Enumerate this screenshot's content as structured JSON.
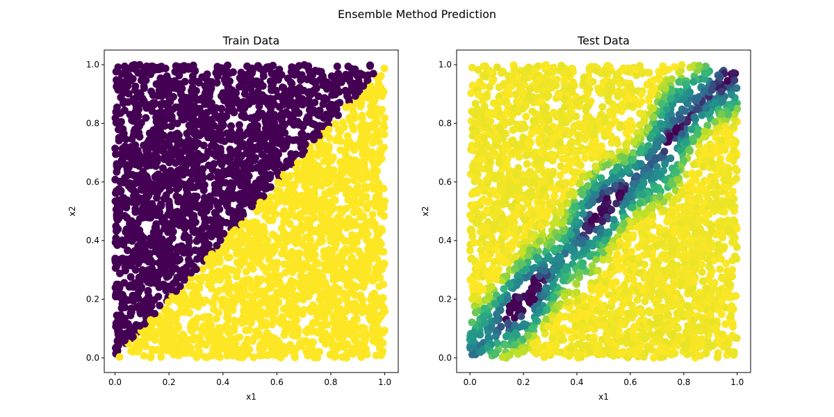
{
  "suptitle": "Ensemble Method Prediction",
  "colormap": [
    "#440154",
    "#31688e",
    "#21918c",
    "#35b779",
    "#b5de2b",
    "#fde725"
  ],
  "chart_data": [
    {
      "type": "scatter",
      "title": "Train Data",
      "xlabel": "x1",
      "ylabel": "x2",
      "xlim": [
        -0.04,
        1.05
      ],
      "ylim": [
        -0.05,
        1.05
      ],
      "xticks": [
        "0.0",
        "0.2",
        "0.4",
        "0.6",
        "0.8",
        "1.0"
      ],
      "yticks": [
        "0.0",
        "0.2",
        "0.4",
        "0.6",
        "0.8",
        "1.0"
      ],
      "grid": false,
      "legend": "none",
      "description_of_data": "Uniform points in [0,1]x[0,1]; class 0 (dark purple #440154) where x2 > x1, class 1 (yellow #fde725) where x2 <= x1",
      "series": [
        {
          "color": "#440154",
          "region": "x2 > x1"
        },
        {
          "color": "#fde725",
          "region": "x2 <= x1"
        }
      ],
      "sample_points": [
        [
          0.02,
          0.05,
          0
        ],
        [
          0.05,
          0.2,
          0
        ],
        [
          0.08,
          0.5,
          0
        ],
        [
          0.03,
          0.92,
          0
        ],
        [
          0.15,
          0.98,
          0
        ],
        [
          0.3,
          0.85,
          0
        ],
        [
          0.4,
          0.95,
          0
        ],
        [
          0.25,
          0.6,
          0
        ],
        [
          0.1,
          0.35,
          0
        ],
        [
          0.5,
          0.75,
          0
        ],
        [
          0.6,
          0.9,
          0
        ],
        [
          0.7,
          0.95,
          0
        ],
        [
          0.85,
          0.97,
          0
        ],
        [
          0.2,
          0.3,
          0
        ],
        [
          0.35,
          0.55,
          0
        ],
        [
          0.55,
          0.6,
          0
        ],
        [
          0.45,
          0.7,
          0
        ],
        [
          0.05,
          0.7,
          0
        ],
        [
          0.05,
          0.02,
          1
        ],
        [
          0.2,
          0.05,
          1
        ],
        [
          0.4,
          0.1,
          1
        ],
        [
          0.6,
          0.02,
          1
        ],
        [
          0.8,
          0.05,
          1
        ],
        [
          0.98,
          0.02,
          1
        ],
        [
          0.95,
          0.4,
          1
        ],
        [
          0.97,
          0.8,
          1
        ],
        [
          0.7,
          0.5,
          1
        ],
        [
          0.5,
          0.3,
          1
        ],
        [
          0.3,
          0.15,
          1
        ],
        [
          0.85,
          0.6,
          1
        ],
        [
          0.65,
          0.25,
          1
        ],
        [
          0.9,
          0.9,
          1
        ],
        [
          0.75,
          0.7,
          1
        ],
        [
          0.45,
          0.4,
          1
        ]
      ]
    },
    {
      "type": "scatter",
      "title": "Test Data",
      "xlabel": "x1",
      "ylabel": "x2",
      "xlim": [
        -0.05,
        1.05
      ],
      "ylim": [
        -0.05,
        1.05
      ],
      "xticks": [
        "0.0",
        "0.2",
        "0.4",
        "0.6",
        "0.8",
        "1.0"
      ],
      "yticks": [
        "0.0",
        "0.2",
        "0.4",
        "0.6",
        "0.8",
        "1.0"
      ],
      "grid": false,
      "legend": "none",
      "description_of_data": "Uniform points in [0,1]x[0,1] colored by ensemble prediction; lowest values (dark purple) along the diagonal x2 = x1, blending through blue/teal/green to yellow away from the diagonal",
      "colorscale": {
        "low": "#440154",
        "high": "#fde725"
      },
      "sample_points": [
        [
          0.0,
          0.0,
          0.0
        ],
        [
          0.1,
          0.1,
          0.0
        ],
        [
          0.3,
          0.3,
          0.0
        ],
        [
          0.5,
          0.5,
          0.0
        ],
        [
          0.7,
          0.72,
          0.0
        ],
        [
          0.9,
          0.92,
          0.0
        ],
        [
          0.97,
          0.99,
          0.0
        ],
        [
          0.2,
          0.25,
          0.3
        ],
        [
          0.4,
          0.35,
          0.3
        ],
        [
          0.6,
          0.66,
          0.3
        ],
        [
          0.85,
          0.8,
          0.3
        ],
        [
          0.25,
          0.35,
          0.6
        ],
        [
          0.55,
          0.45,
          0.6
        ],
        [
          0.75,
          0.85,
          0.6
        ],
        [
          0.05,
          0.9,
          1.0
        ],
        [
          0.2,
          0.7,
          1.0
        ],
        [
          0.4,
          0.9,
          1.0
        ],
        [
          0.8,
          0.2,
          1.0
        ],
        [
          0.95,
          0.05,
          1.0
        ],
        [
          0.6,
          0.1,
          1.0
        ],
        [
          0.1,
          0.5,
          1.0
        ],
        [
          0.9,
          0.5,
          1.0
        ]
      ]
    }
  ]
}
